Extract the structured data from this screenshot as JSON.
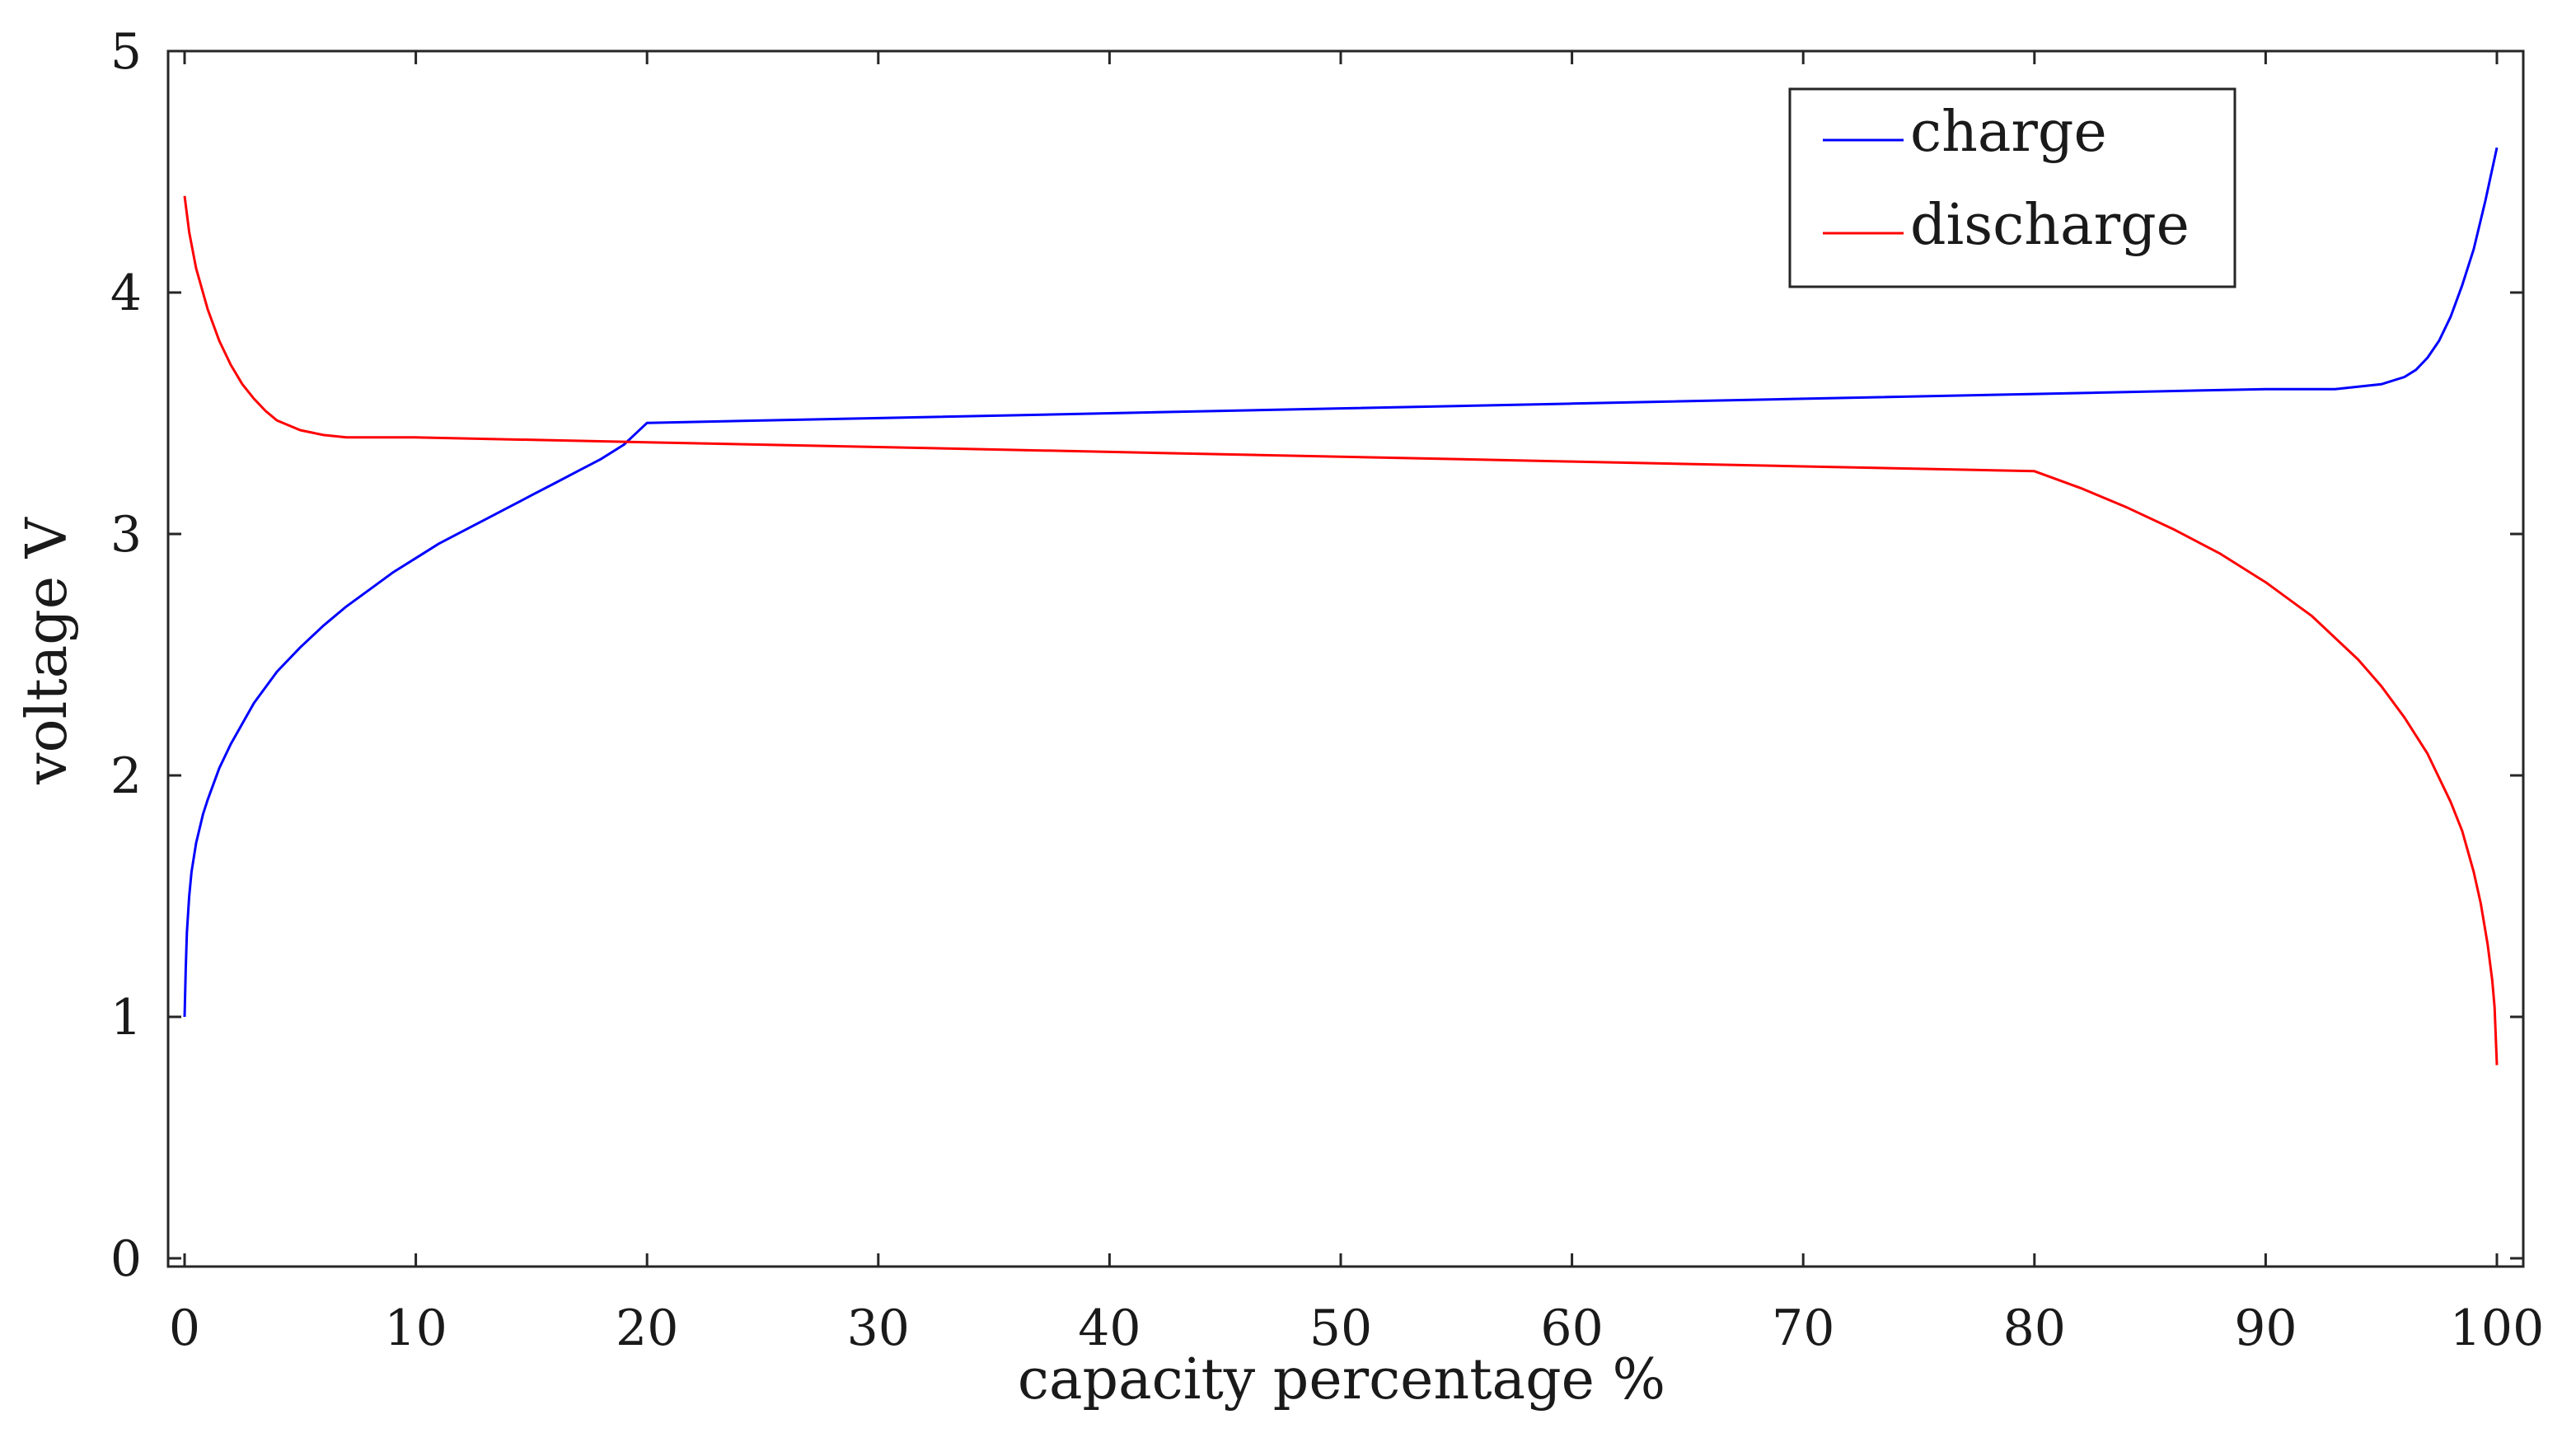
{
  "chart_data": {
    "type": "line",
    "title": "",
    "xlabel": "capacity percentage %",
    "ylabel": "voltage V",
    "xlim": [
      0,
      100
    ],
    "ylim": [
      0,
      5
    ],
    "xticks": [
      0,
      10,
      20,
      30,
      40,
      50,
      60,
      70,
      80,
      90,
      100
    ],
    "xtick_labels": [
      "0",
      "10",
      "20",
      "30",
      "40",
      "50",
      "60",
      "70",
      "80",
      "90",
      "100"
    ],
    "yticks": [
      0,
      1,
      2,
      3,
      4,
      5
    ],
    "ytick_labels": [
      "0",
      "1",
      "2",
      "3",
      "4",
      "5"
    ],
    "grid": false,
    "legend_position": "top-right",
    "series": [
      {
        "name": "charge",
        "color": "#0000ff",
        "x": [
          0,
          0.05,
          0.1,
          0.2,
          0.3,
          0.5,
          0.8,
          1,
          1.5,
          2,
          3,
          4,
          5,
          6,
          7,
          8,
          9,
          10,
          11,
          12,
          13,
          14,
          15,
          16,
          17,
          18,
          19,
          20,
          25,
          30,
          40,
          50,
          60,
          70,
          80,
          90,
          93,
          94,
          95,
          96,
          96.5,
          97,
          97.5,
          98,
          98.5,
          99,
          99.5,
          100
        ],
        "y": [
          1.0,
          1.2,
          1.35,
          1.5,
          1.6,
          1.72,
          1.84,
          1.9,
          2.03,
          2.13,
          2.3,
          2.43,
          2.53,
          2.62,
          2.7,
          2.77,
          2.84,
          2.9,
          2.96,
          3.01,
          3.06,
          3.11,
          3.16,
          3.21,
          3.26,
          3.31,
          3.37,
          3.46,
          3.47,
          3.48,
          3.5,
          3.52,
          3.54,
          3.56,
          3.58,
          3.6,
          3.6,
          3.61,
          3.62,
          3.65,
          3.68,
          3.73,
          3.8,
          3.9,
          4.03,
          4.18,
          4.38,
          4.6
        ]
      },
      {
        "name": "discharge",
        "color": "#ff0000",
        "x": [
          0,
          0.2,
          0.5,
          1,
          1.5,
          2,
          2.5,
          3,
          3.5,
          4,
          5,
          6,
          7,
          10,
          20,
          30,
          40,
          50,
          60,
          70,
          80,
          82,
          84,
          86,
          88,
          90,
          92,
          94,
          95,
          96,
          97,
          98,
          98.5,
          99,
          99.3,
          99.6,
          99.8,
          99.9,
          100
        ],
        "y": [
          4.4,
          4.25,
          4.1,
          3.93,
          3.8,
          3.7,
          3.62,
          3.56,
          3.51,
          3.47,
          3.43,
          3.41,
          3.4,
          3.4,
          3.38,
          3.36,
          3.34,
          3.32,
          3.3,
          3.28,
          3.26,
          3.19,
          3.11,
          3.02,
          2.92,
          2.8,
          2.66,
          2.48,
          2.37,
          2.24,
          2.09,
          1.89,
          1.77,
          1.6,
          1.47,
          1.3,
          1.15,
          1.04,
          0.8
        ]
      }
    ]
  }
}
